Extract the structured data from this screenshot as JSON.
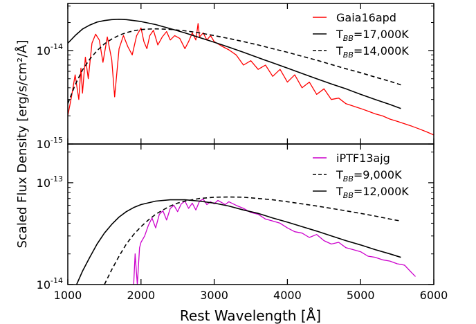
{
  "figure": {
    "xlabel": "Rest Wavelength [Å]",
    "ylabel": "Scaled Flux Density [erg/s/cm²/Å]",
    "xlim": [
      1000,
      6000
    ],
    "xticks": [
      1000,
      2000,
      3000,
      4000,
      5000,
      6000
    ],
    "xtick_labels": [
      "1000",
      "2000",
      "3000",
      "4000",
      "5000",
      "6000"
    ]
  },
  "chart_data": [
    {
      "type": "line",
      "panel": "top",
      "yscale": "log",
      "ylim": [
        1e-15,
        3.2e-14
      ],
      "ytick_labels": [
        {
          "value": 1e-15,
          "base": "10",
          "exp": "-15"
        },
        {
          "value": 1e-14,
          "base": "10",
          "exp": "-14"
        }
      ],
      "legend_position": "top-right",
      "series": [
        {
          "name": "Gaia16apd",
          "label_main": "Gaia16apd",
          "label_sub": "",
          "label_rest": "",
          "color": "#ff0000",
          "style": "solid",
          "x": [
            1000,
            1050,
            1100,
            1150,
            1180,
            1200,
            1240,
            1280,
            1330,
            1380,
            1430,
            1480,
            1540,
            1600,
            1640,
            1700,
            1760,
            1820,
            1880,
            1940,
            2000,
            2040,
            2080,
            2120,
            2170,
            2230,
            2290,
            2350,
            2400,
            2460,
            2530,
            2600,
            2650,
            2700,
            2750,
            2780,
            2800,
            2850,
            2900,
            2950,
            3000,
            3100,
            3200,
            3300,
            3400,
            3500,
            3600,
            3700,
            3800,
            3900,
            4000,
            4100,
            4200,
            4300,
            4400,
            4500,
            4600,
            4700,
            4800,
            4900,
            5000,
            5100,
            5200,
            5300,
            5400,
            5500,
            5600,
            5700,
            5800,
            5900,
            6000
          ],
          "y": [
            2e-15,
            3.2e-15,
            5.5e-15,
            3e-15,
            6.5e-15,
            3.5e-15,
            8.5e-15,
            5e-15,
            1.2e-14,
            1.5e-14,
            1.3e-14,
            7.5e-15,
            1.4e-14,
            8e-15,
            3.2e-15,
            1.05e-14,
            1.45e-14,
            1.1e-14,
            9e-15,
            1.45e-14,
            1.75e-14,
            1.25e-14,
            1.05e-14,
            1.45e-14,
            1.65e-14,
            1.15e-14,
            1.4e-14,
            1.6e-14,
            1.3e-14,
            1.45e-14,
            1.35e-14,
            1.05e-14,
            1.25e-14,
            1.55e-14,
            1.3e-14,
            1.95e-14,
            1.4e-14,
            1.55e-14,
            1.3e-14,
            1.45e-14,
            1.25e-14,
            1.12e-14,
            1.02e-14,
            9e-15,
            7e-15,
            7.8e-15,
            6.3e-15,
            7e-15,
            5.3e-15,
            6.3e-15,
            4.6e-15,
            5.5e-15,
            4e-15,
            4.6e-15,
            3.4e-15,
            3.9e-15,
            3e-15,
            3.1e-15,
            2.7e-15,
            2.55e-15,
            2.4e-15,
            2.25e-15,
            2.1e-15,
            2e-15,
            1.85e-15,
            1.75e-15,
            1.65e-15,
            1.55e-15,
            1.45e-15,
            1.35e-15,
            1.25e-15
          ]
        },
        {
          "name": "T_BB=17,000K",
          "label_main": "T",
          "label_sub": "BB",
          "label_rest": "=17,000K",
          "color": "#000000",
          "style": "solid",
          "x": [
            1000,
            1100,
            1200,
            1300,
            1400,
            1500,
            1600,
            1700,
            1800,
            2000,
            2200,
            2400,
            2600,
            2800,
            3000,
            3200,
            3400,
            3600,
            3800,
            4000,
            4200,
            4400,
            4600,
            4800,
            5000,
            5200,
            5400,
            5550
          ],
          "y": [
            1.2e-14,
            1.45e-14,
            1.7e-14,
            1.88e-14,
            2.02e-14,
            2.1e-14,
            2.15e-14,
            2.17e-14,
            2.15e-14,
            2.05e-14,
            1.9e-14,
            1.72e-14,
            1.55e-14,
            1.38e-14,
            1.23e-14,
            1.09e-14,
            9.6e-15,
            8.4e-15,
            7.4e-15,
            6.5e-15,
            5.7e-15,
            5e-15,
            4.4e-15,
            3.9e-15,
            3.4e-15,
            3e-15,
            2.65e-15,
            2.4e-15
          ]
        },
        {
          "name": "T_BB=14,000K",
          "label_main": "T",
          "label_sub": "BB",
          "label_rest": "=14,000K",
          "color": "#000000",
          "style": "dashed",
          "x": [
            1000,
            1100,
            1200,
            1300,
            1400,
            1500,
            1600,
            1700,
            1800,
            1900,
            2000,
            2100,
            2200,
            2400,
            2600,
            2800,
            3000,
            3200,
            3400,
            3600,
            3800,
            4000,
            4200,
            4400,
            4600,
            4800,
            5000,
            5200,
            5400,
            5550
          ],
          "y": [
            2.7e-15,
            4.3e-15,
            6.2e-15,
            8.1e-15,
            1e-14,
            1.18e-14,
            1.33e-14,
            1.46e-14,
            1.56e-14,
            1.63e-14,
            1.68e-14,
            1.7e-14,
            1.71e-14,
            1.69e-14,
            1.63e-14,
            1.55e-14,
            1.45e-14,
            1.35e-14,
            1.25e-14,
            1.15e-14,
            1.05e-14,
            9.6e-15,
            8.7e-15,
            7.9e-15,
            7.1e-15,
            6.4e-15,
            5.8e-15,
            5.2e-15,
            4.7e-15,
            4.3e-15
          ]
        }
      ]
    },
    {
      "type": "line",
      "panel": "bottom",
      "yscale": "log",
      "ylim": [
        1e-14,
        2.4e-13
      ],
      "ytick_labels": [
        {
          "value": 1e-14,
          "base": "10",
          "exp": "-14"
        },
        {
          "value": 1e-13,
          "base": "10",
          "exp": "-13"
        }
      ],
      "legend_position": "top-right",
      "series": [
        {
          "name": "iPTF13ajg",
          "label_main": "iPTF13ajg",
          "label_sub": "",
          "label_rest": "",
          "color": "#cc00cc",
          "style": "solid",
          "x": [
            1900,
            1920,
            1950,
            1980,
            2000,
            2050,
            2100,
            2150,
            2200,
            2250,
            2300,
            2350,
            2400,
            2450,
            2500,
            2550,
            2600,
            2650,
            2700,
            2750,
            2800,
            2850,
            2900,
            2950,
            3000,
            3050,
            3100,
            3150,
            3200,
            3300,
            3400,
            3500,
            3600,
            3700,
            3800,
            3900,
            4000,
            4100,
            4200,
            4300,
            4400,
            4500,
            4600,
            4700,
            4800,
            4900,
            5000,
            5100,
            5200,
            5300,
            5400,
            5500,
            5600,
            5700,
            5750
          ],
          "y": [
            1e-14,
            2e-14,
            1e-14,
            2.3e-14,
            2.6e-14,
            3e-14,
            3.8e-14,
            4.5e-14,
            3.6e-14,
            4.9e-14,
            5.3e-14,
            4.3e-14,
            5.6e-14,
            6e-14,
            5.2e-14,
            6.2e-14,
            6.6e-14,
            5.6e-14,
            6.3e-14,
            5.4e-14,
            6.6e-14,
            6.9e-14,
            6.1e-14,
            6.5e-14,
            6.2e-14,
            6.7e-14,
            6.4e-14,
            6.1e-14,
            6.5e-14,
            6e-14,
            5.6e-14,
            5.1e-14,
            4.9e-14,
            4.4e-14,
            4.2e-14,
            4e-14,
            3.6e-14,
            3.3e-14,
            3.2e-14,
            2.9e-14,
            3.1e-14,
            2.7e-14,
            2.5e-14,
            2.6e-14,
            2.3e-14,
            2.2e-14,
            2.1e-14,
            1.9e-14,
            1.85e-14,
            1.75e-14,
            1.7e-14,
            1.6e-14,
            1.55e-14,
            1.3e-14,
            1.2e-14
          ]
        },
        {
          "name": "T_BB=9,000K",
          "label_main": "T",
          "label_sub": "BB",
          "label_rest": "=9,000K",
          "color": "#000000",
          "style": "dashed",
          "x": [
            1500,
            1600,
            1700,
            1800,
            1900,
            2000,
            2100,
            2200,
            2300,
            2400,
            2500,
            2600,
            2800,
            3000,
            3200,
            3400,
            3600,
            3800,
            4000,
            4200,
            4400,
            4600,
            4800,
            5000,
            5200,
            5400,
            5550
          ],
          "y": [
            1e-14,
            1.4e-14,
            1.9e-14,
            2.5e-14,
            3.1e-14,
            3.7e-14,
            4.3e-14,
            4.9e-14,
            5.4e-14,
            5.9e-14,
            6.3e-14,
            6.6e-14,
            7e-14,
            7.2e-14,
            7.25e-14,
            7.2e-14,
            7e-14,
            6.8e-14,
            6.5e-14,
            6.2e-14,
            5.9e-14,
            5.6e-14,
            5.3e-14,
            5e-14,
            4.7e-14,
            4.4e-14,
            4.2e-14
          ]
        },
        {
          "name": "T_BB=12,000K",
          "label_main": "T",
          "label_sub": "BB",
          "label_rest": "=12,000K",
          "color": "#000000",
          "style": "solid",
          "x": [
            1120,
            1200,
            1300,
            1400,
            1500,
            1600,
            1700,
            1800,
            1900,
            2000,
            2200,
            2400,
            2600,
            2800,
            3000,
            3200,
            3400,
            3600,
            3800,
            4000,
            4200,
            4400,
            4600,
            4800,
            5000,
            5200,
            5400,
            5550
          ],
          "y": [
            1e-14,
            1.35e-14,
            1.85e-14,
            2.5e-14,
            3.2e-14,
            3.9e-14,
            4.6e-14,
            5.2e-14,
            5.7e-14,
            6.1e-14,
            6.6e-14,
            6.8e-14,
            6.8e-14,
            6.6e-14,
            6.3e-14,
            5.9e-14,
            5.4e-14,
            5e-14,
            4.5e-14,
            4.1e-14,
            3.7e-14,
            3.35e-14,
            3e-14,
            2.7e-14,
            2.45e-14,
            2.2e-14,
            2e-14,
            1.85e-14
          ]
        }
      ]
    }
  ]
}
